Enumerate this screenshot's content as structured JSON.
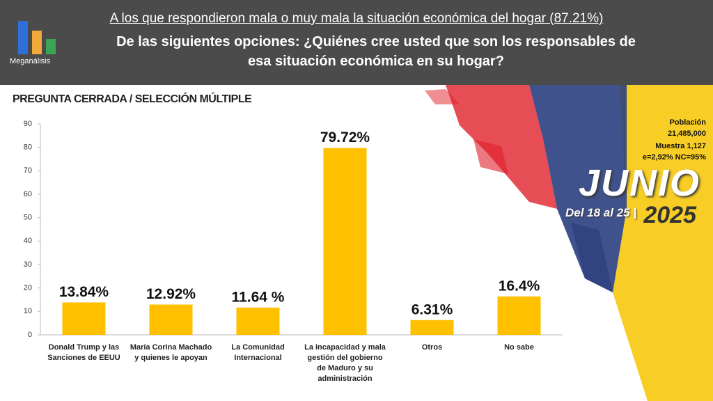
{
  "header": {
    "line1": "A los que respondieron mala o muy mala la situación económica del hogar (87.21%)",
    "question": "De las siguientes opciones: ¿Quiénes cree usted que son los responsables de esa situación económica en su hogar?",
    "logo": "Meganálisis"
  },
  "subtitle": "PREGUNTA CERRADA / SELECCIÓN MÚLTIPLE",
  "sample": [
    "Población",
    "21,485,000",
    "Muestra 1,127",
    "e=2,92%  NC=95%"
  ],
  "date": {
    "month": "JUNIO",
    "range": "Del 18 al 25 |",
    "year": "2025"
  },
  "chart_data": {
    "type": "bar",
    "categories": [
      "Donald Trump y las Sanciones de EEUU",
      "María Corina Machado y quienes le apoyan",
      "La Comunidad Internacional",
      "La incapacidad y mala gestión del gobierno de Maduro y su administración",
      "Otros",
      "No sabe"
    ],
    "values": [
      13.84,
      12.92,
      11.64,
      79.72,
      6.31,
      16.4
    ],
    "value_labels": [
      "13.84%",
      "12.92%",
      "11.64 %",
      "79.72%",
      "6.31%",
      "16.4%"
    ],
    "color": "#ffc000",
    "ylim": [
      0,
      90
    ],
    "yticks": [
      0,
      10,
      20,
      30,
      40,
      50,
      60,
      70,
      80,
      90
    ],
    "grid": false
  }
}
